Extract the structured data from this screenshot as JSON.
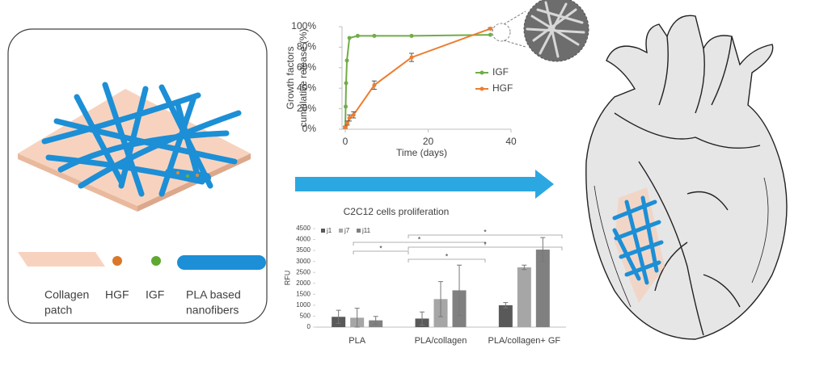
{
  "chart_data": [
    {
      "type": "line",
      "xlabel": "Time (days)",
      "ylabel": [
        "Growth factors",
        "cumulative release (%)"
      ],
      "xlim": [
        0,
        40
      ],
      "xticks": [
        0,
        20,
        40
      ],
      "ylim": [
        0,
        100
      ],
      "yticks": [
        {
          "value": 0,
          "label": "0%"
        },
        {
          "value": 20,
          "label": "20%"
        },
        {
          "value": 40,
          "label": "40%"
        },
        {
          "value": 60,
          "label": "60%"
        },
        {
          "value": 80,
          "label": "80%"
        },
        {
          "value": 100,
          "label": "100%"
        }
      ],
      "series": [
        {
          "name": "IGF",
          "color": "#70ad47",
          "x": [
            0,
            0.1,
            0.2,
            0.4,
            1,
            3,
            7,
            16,
            35
          ],
          "values": [
            2,
            22,
            45,
            67,
            89,
            91,
            91,
            91,
            92
          ]
        },
        {
          "name": "HGF",
          "color": "#ed7d31",
          "x": [
            0,
            0.5,
            1,
            2,
            7,
            16,
            35
          ],
          "values": [
            2,
            6,
            11,
            14,
            43,
            70,
            98
          ],
          "errors": [
            1,
            2,
            3,
            3,
            4,
            4,
            1
          ]
        }
      ]
    },
    {
      "type": "bar",
      "title": "C2C12 cells proliferation",
      "ylabel": "RFU",
      "categories": [
        "PLA",
        "PLA/collagen",
        "PLA/collagen+ GF"
      ],
      "ylim": [
        0,
        4500
      ],
      "yticks": [
        0,
        500,
        1000,
        1500,
        2000,
        2500,
        3000,
        3500,
        4000,
        4500
      ],
      "series": [
        {
          "name": "j1",
          "color": "#595959",
          "values": [
            470,
            390,
            1000
          ],
          "errors": [
            300,
            300,
            120
          ]
        },
        {
          "name": "j7",
          "color": "#a6a6a6",
          "values": [
            430,
            1280,
            2730
          ],
          "errors": [
            430,
            800,
            100
          ]
        },
        {
          "name": "j11",
          "color": "#808080",
          "values": [
            310,
            1680,
            3540
          ],
          "errors": [
            180,
            1150,
            550
          ]
        }
      ],
      "significance": [
        "*",
        "*",
        "*",
        "*",
        "*"
      ]
    }
  ],
  "schematic": {
    "labels": [
      [
        "Collagen",
        "patch"
      ],
      [
        "HGF"
      ],
      [
        "IGF"
      ],
      [
        "PLA based",
        "nanofibers"
      ]
    ]
  }
}
